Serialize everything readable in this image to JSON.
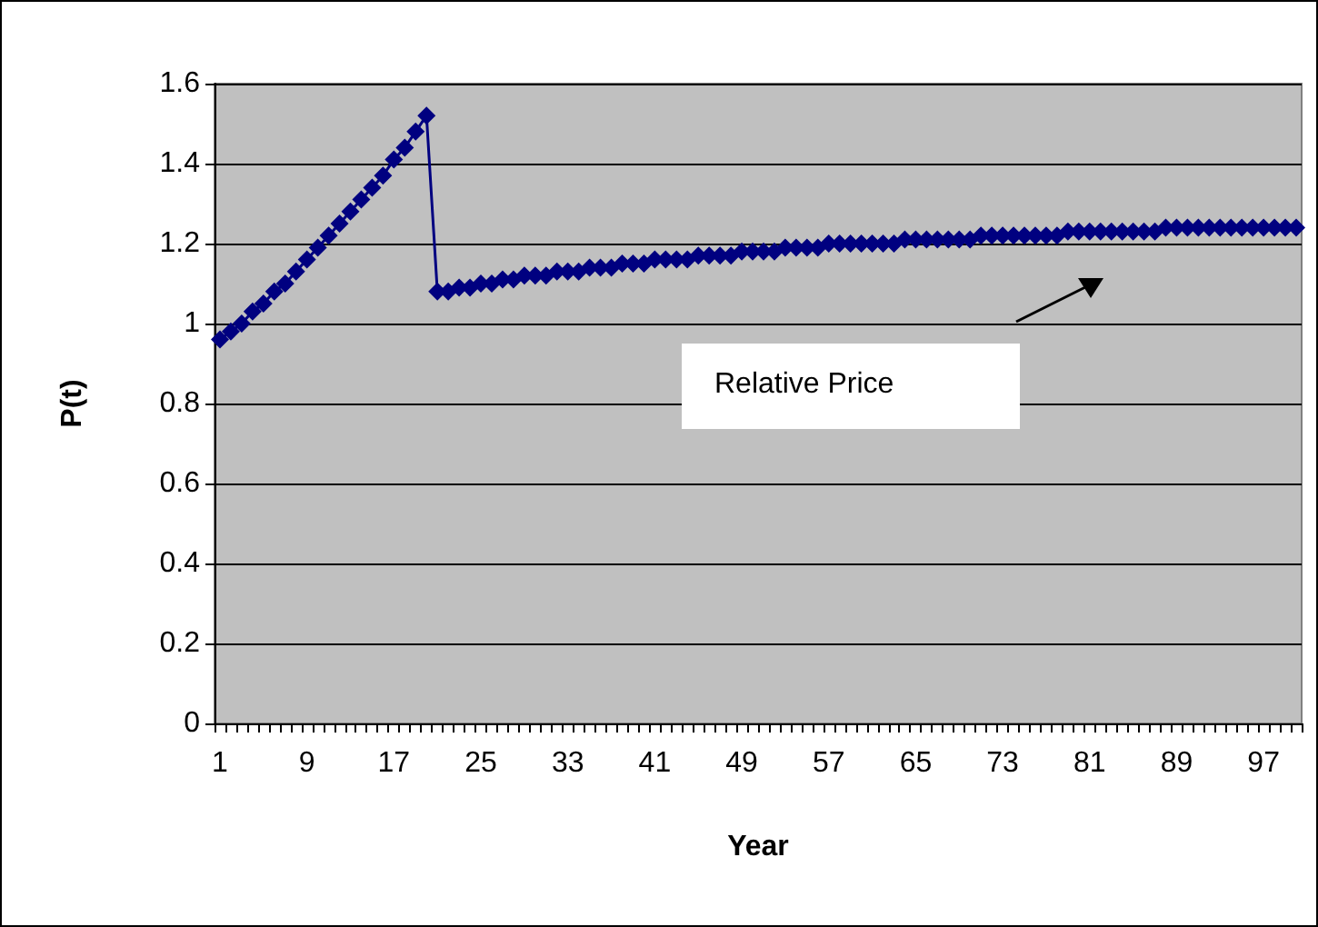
{
  "chart_data": {
    "type": "line",
    "xlabel": "Year",
    "ylabel": "P(t)",
    "categories": [
      "1",
      null,
      null,
      null,
      null,
      null,
      null,
      null,
      "9",
      null,
      null,
      null,
      null,
      null,
      null,
      null,
      "17",
      null,
      null,
      null,
      null,
      null,
      null,
      null,
      "25",
      null,
      null,
      null,
      null,
      null,
      null,
      null,
      "33",
      null,
      null,
      null,
      null,
      null,
      null,
      null,
      "41",
      null,
      null,
      null,
      null,
      null,
      null,
      null,
      "49",
      null,
      null,
      null,
      null,
      null,
      null,
      null,
      "57",
      null,
      null,
      null,
      null,
      null,
      null,
      null,
      "65",
      null,
      null,
      null,
      null,
      null,
      null,
      null,
      "73",
      null,
      null,
      null,
      null,
      null,
      null,
      null,
      "81",
      null,
      null,
      null,
      null,
      null,
      null,
      null,
      "89",
      null,
      null,
      null,
      null,
      null,
      null,
      null,
      "97",
      null,
      null,
      null
    ],
    "series": [
      {
        "color": "#000080",
        "values": [
          0.96,
          0.98,
          1.0,
          1.03,
          1.05,
          1.08,
          1.1,
          1.13,
          1.16,
          1.19,
          1.22,
          1.25,
          1.28,
          1.31,
          1.34,
          1.37,
          1.41,
          1.44,
          1.48,
          1.52,
          1.08,
          1.08,
          1.09,
          1.09,
          1.1,
          1.1,
          1.11,
          1.11,
          1.12,
          1.12,
          1.12,
          1.13,
          1.13,
          1.13,
          1.14,
          1.14,
          1.14,
          1.15,
          1.15,
          1.15,
          1.16,
          1.16,
          1.16,
          1.16,
          1.17,
          1.17,
          1.17,
          1.17,
          1.18,
          1.18,
          1.18,
          1.18,
          1.19,
          1.19,
          1.19,
          1.19,
          1.2,
          1.2,
          1.2,
          1.2,
          1.2,
          1.2,
          1.2,
          1.21,
          1.21,
          1.21,
          1.21,
          1.21,
          1.21,
          1.21,
          1.22,
          1.22,
          1.22,
          1.22,
          1.22,
          1.22,
          1.22,
          1.22,
          1.23,
          1.23,
          1.23,
          1.23,
          1.23,
          1.23,
          1.23,
          1.23,
          1.23,
          1.24,
          1.24,
          1.24,
          1.24,
          1.24,
          1.24,
          1.24,
          1.24,
          1.24,
          1.24,
          1.24,
          1.24,
          1.24
        ]
      }
    ],
    "ylim": [
      0,
      1.6
    ],
    "yticks": [
      0,
      0.2,
      0.4,
      0.6,
      0.8,
      1,
      1.2,
      1.4,
      1.6
    ],
    "grid": "y",
    "marker": "diamond",
    "line_style": "solid",
    "annotations": [
      "Relative Price"
    ]
  }
}
